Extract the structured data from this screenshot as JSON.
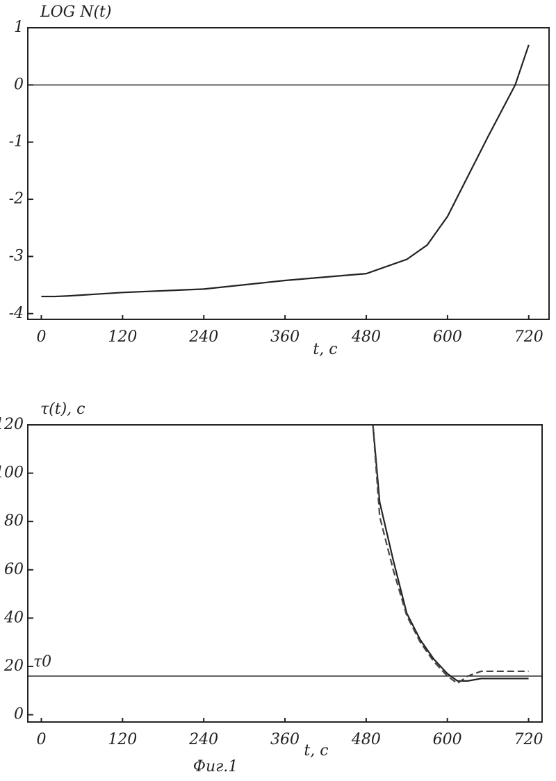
{
  "chart_data": [
    {
      "type": "line",
      "ylabel": "LOG N(t)",
      "xlabel": "t, c",
      "xlim": [
        -20,
        750
      ],
      "ylim": [
        -4.1,
        1
      ],
      "xticks": [
        0,
        120,
        240,
        360,
        480,
        600,
        720
      ],
      "yticks": [
        -4,
        -3,
        -2,
        -1,
        0,
        1
      ],
      "hline": 0,
      "x": [
        0,
        20,
        40,
        120,
        240,
        360,
        480,
        540,
        570,
        600,
        630,
        660,
        700,
        720
      ],
      "series": [
        {
          "color": "#222222",
          "style": "solid",
          "values": [
            -3.7,
            -3.7,
            -3.69,
            -3.63,
            -3.57,
            -3.42,
            -3.3,
            -3.05,
            -2.8,
            -2.3,
            -1.6,
            -0.9,
            0,
            0.7
          ]
        }
      ]
    },
    {
      "type": "line",
      "ylabel": "τ(t), c",
      "xlabel": "t, c",
      "xlim": [
        -20,
        740
      ],
      "ylim": [
        -3,
        120
      ],
      "xticks": [
        0,
        120,
        240,
        360,
        480,
        600,
        720
      ],
      "yticks": [
        0,
        20,
        40,
        60,
        80,
        100,
        120
      ],
      "hline": 16,
      "hline_label": "τ0",
      "x": [
        490,
        500,
        520,
        540,
        560,
        580,
        600,
        615,
        630,
        650,
        680,
        720
      ],
      "series": [
        {
          "color": "#222222",
          "style": "solid",
          "values": [
            120,
            88,
            64,
            42,
            31,
            23,
            17,
            14,
            14,
            15,
            15,
            15
          ]
        },
        {
          "color": "#444444",
          "style": "dashed",
          "values": [
            120,
            82,
            60,
            41,
            30,
            22,
            16,
            13,
            16,
            18,
            18,
            18
          ]
        }
      ]
    }
  ],
  "caption": "Фиг.1"
}
